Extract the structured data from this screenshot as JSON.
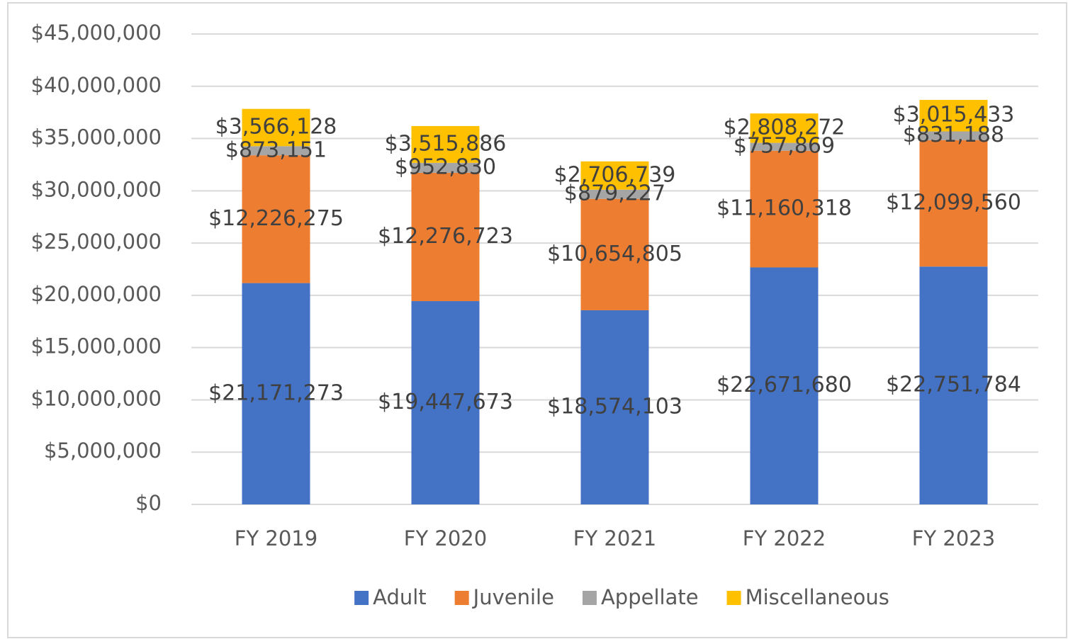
{
  "chart_data": {
    "type": "stacked_bar",
    "categories": [
      "FY 2019",
      "FY 2020",
      "FY 2021",
      "FY 2022",
      "FY 2023"
    ],
    "series": [
      {
        "name": "Adult",
        "color": "#4472c4",
        "values": [
          21171273,
          19447673,
          18574103,
          22671680,
          22751784
        ],
        "value_labels": [
          "$21,171,273",
          "$19,447,673",
          "$18,574,103",
          "$22,671,680",
          "$22,751,784"
        ]
      },
      {
        "name": "Juvenile",
        "color": "#ed7d31",
        "values": [
          12226275,
          12276723,
          10654805,
          11160318,
          12099560
        ],
        "value_labels": [
          "$12,226,275",
          "$12,276,723",
          "$10,654,805",
          "$11,160,318",
          "$12,099,560"
        ]
      },
      {
        "name": "Appellate",
        "color": "#a5a5a5",
        "values": [
          873151,
          952830,
          879227,
          757869,
          831188
        ],
        "value_labels": [
          "$873,151",
          "$952,830",
          "$879,227",
          "$757,869",
          "$831,188"
        ]
      },
      {
        "name": "Miscellaneous",
        "color": "#ffc000",
        "values": [
          3566128,
          3515886,
          2706739,
          2808272,
          3015433
        ],
        "value_labels": [
          "$3,566,128",
          "$3,515,886",
          "$2,706,739",
          "$2,808,272",
          "$3,015,433"
        ]
      }
    ],
    "ylim": [
      0,
      45000000
    ],
    "yticks": [
      {
        "value": 0,
        "label": "$0"
      },
      {
        "value": 5000000,
        "label": "$5,000,000"
      },
      {
        "value": 10000000,
        "label": "$10,000,000"
      },
      {
        "value": 15000000,
        "label": "$15,000,000"
      },
      {
        "value": 20000000,
        "label": "$20,000,000"
      },
      {
        "value": 25000000,
        "label": "$25,000,000"
      },
      {
        "value": 30000000,
        "label": "$30,000,000"
      },
      {
        "value": 35000000,
        "label": "$35,000,000"
      },
      {
        "value": 40000000,
        "label": "$40,000,000"
      },
      {
        "value": 45000000,
        "label": "$45,000,000"
      }
    ],
    "grid": true,
    "legend": "bottom"
  }
}
